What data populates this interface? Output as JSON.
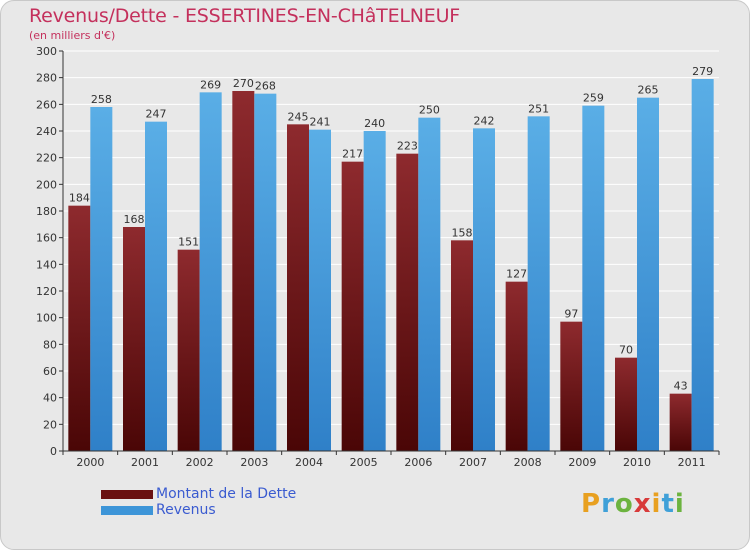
{
  "title": "Revenus/Dette - ESSERTINES-EN-CHâTELNEUF",
  "subtitle": "(en milliers d'€)",
  "logo": {
    "letters": [
      "P",
      "r",
      "o",
      "x",
      "i",
      "t",
      "i"
    ],
    "colors": [
      "#e8a020",
      "#3fa0d8",
      "#6cb33f",
      "#d83a3a",
      "#e8a020",
      "#3fa0d8",
      "#6cb33f"
    ]
  },
  "colors": {
    "dette": "#7a1c1c",
    "revenus": "#3d95d8",
    "grid": "#ffffff",
    "plot_bg": "#e8e8e8"
  },
  "legend": [
    {
      "label": "Montant de la Dette",
      "color": "#6a1010"
    },
    {
      "label": "Revenus",
      "color": "#3d95d8"
    }
  ],
  "chart_data": {
    "type": "bar",
    "categories": [
      "2000",
      "2001",
      "2002",
      "2003",
      "2004",
      "2005",
      "2006",
      "2007",
      "2008",
      "2009",
      "2010",
      "2011"
    ],
    "series": [
      {
        "name": "Montant de la Dette",
        "values": [
          184,
          168,
          151,
          270,
          245,
          217,
          223,
          158,
          127,
          97,
          70,
          43
        ]
      },
      {
        "name": "Revenus",
        "values": [
          258,
          247,
          269,
          268,
          241,
          240,
          250,
          242,
          251,
          259,
          265,
          279
        ]
      }
    ],
    "ylim": [
      0,
      300
    ],
    "yticks": [
      0,
      20,
      40,
      60,
      80,
      100,
      120,
      140,
      160,
      180,
      200,
      220,
      240,
      260,
      280,
      300
    ],
    "grid": true,
    "legend_position": "bottom-left"
  }
}
